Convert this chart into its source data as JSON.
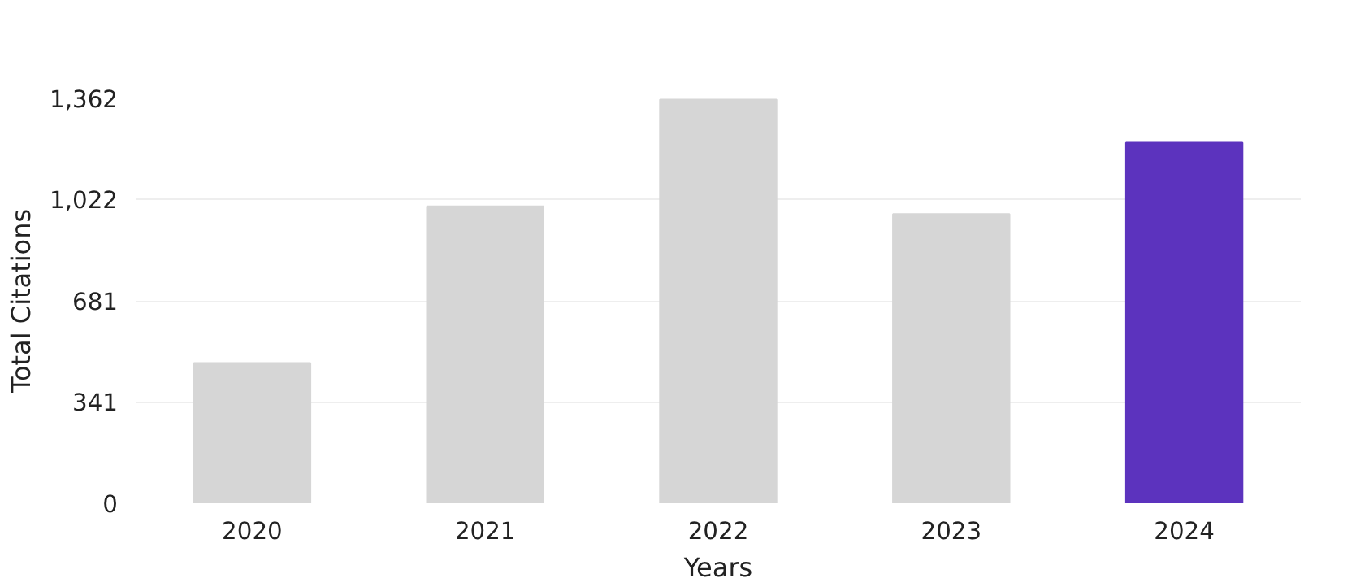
{
  "chart_data": {
    "type": "bar",
    "xlabel": "Years",
    "ylabel": "Total Citations",
    "categories": [
      "2020",
      "2021",
      "2022",
      "2023",
      "2024"
    ],
    "values": [
      472,
      999,
      1358,
      973,
      1213
    ],
    "colors": [
      "#d6d6d6",
      "#d6d6d6",
      "#d6d6d6",
      "#d6d6d6",
      "#5c33be"
    ],
    "ylim": [
      0,
      1362
    ],
    "yticks": [
      0,
      {
        "value": 341,
        "label": "341"
      },
      {
        "value": 681,
        "label": "681"
      },
      {
        "value": 1022,
        "label": "1,022"
      },
      {
        "value": 1362,
        "label": "1,362"
      }
    ],
    "grid": "y"
  }
}
